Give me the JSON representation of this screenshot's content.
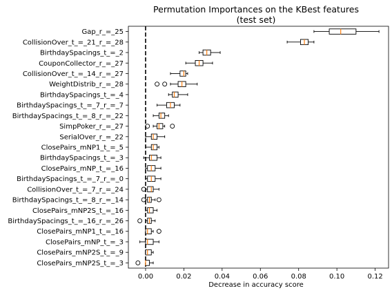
{
  "chart_data": {
    "type": "boxplot",
    "orientation": "horizontal",
    "title": "Permutation Importances on the KBest features",
    "subtitle": "(test set)",
    "xlabel": "Decrease in accuracy score",
    "ylabel": "",
    "xlim": [
      -0.009,
      0.127
    ],
    "xticks": [
      0.0,
      0.02,
      0.04,
      0.06,
      0.08,
      0.1,
      0.12
    ],
    "xtick_labels": [
      "0.00",
      "0.02",
      "0.04",
      "0.06",
      "0.08",
      "0.10",
      "0.12"
    ],
    "reference_line": {
      "x": 0,
      "style": "dashed",
      "color": "#000000"
    },
    "box_color": "#000000",
    "median_color": "#ff7f0e",
    "categories": [
      "Gap_r_=_25",
      "CollisionOver_t_=_21_r_=_28",
      "BirthdaySpacings_t_=_2",
      "CouponCollector_r_=_27",
      "CollisionOver_t_=_14_r_=_27",
      "WeightDistrib_r_=_28",
      "BirthdaySpacings_t_=_4",
      "BirthdaySpacings_t_=_7_r_=_7",
      "BirthdaySpacings_t_=_8_r_=_22",
      "SimpPoker_r_=_27",
      "SerialOver_r_=_22",
      "ClosePairs_mNP1_t_=_5",
      "BirthdaySpacings_t_=_3",
      "ClosePairs_mNP_t_=_16",
      "BirthdaySpacings_t_=_7_r_=_0",
      "CollisionOver_t_=_7_r_=_24",
      "BirthdaySpacings_t_=_8_r_=_14",
      "ClosePairs_mNP2S_t_=_16",
      "BirthdaySpacings_t_=_16_r_=_26",
      "ClosePairs_mNP1_t_=_16",
      "ClosePairs_mNP_t_=_3",
      "ClosePairs_mNP2S_t_=_9",
      "ClosePairs_mNP2S_t_=_3"
    ],
    "boxes": [
      {
        "whislo": 0.088,
        "q1": 0.096,
        "med": 0.102,
        "q3": 0.11,
        "whishi": 0.122,
        "fliers": []
      },
      {
        "whislo": 0.074,
        "q1": 0.081,
        "med": 0.083,
        "q3": 0.085,
        "whishi": 0.088,
        "fliers": []
      },
      {
        "whislo": 0.028,
        "q1": 0.03,
        "med": 0.032,
        "q3": 0.034,
        "whishi": 0.039,
        "fliers": []
      },
      {
        "whislo": 0.021,
        "q1": 0.026,
        "med": 0.028,
        "q3": 0.03,
        "whishi": 0.035,
        "fliers": []
      },
      {
        "whislo": 0.013,
        "q1": 0.018,
        "med": 0.02,
        "q3": 0.021,
        "whishi": 0.022,
        "fliers": []
      },
      {
        "whislo": 0.013,
        "q1": 0.017,
        "med": 0.019,
        "q3": 0.021,
        "whishi": 0.027,
        "fliers": [
          0.006,
          0.01
        ]
      },
      {
        "whislo": 0.012,
        "q1": 0.014,
        "med": 0.015,
        "q3": 0.017,
        "whishi": 0.022,
        "fliers": []
      },
      {
        "whislo": 0.006,
        "q1": 0.011,
        "med": 0.013,
        "q3": 0.015,
        "whishi": 0.018,
        "fliers": []
      },
      {
        "whislo": 0.004,
        "q1": 0.007,
        "med": 0.008,
        "q3": 0.01,
        "whishi": 0.012,
        "fliers": []
      },
      {
        "whislo": 0.004,
        "q1": 0.006,
        "med": 0.007,
        "q3": 0.009,
        "whishi": 0.01,
        "fliers": [
          0.001,
          0.014
        ]
      },
      {
        "whislo": 0.0,
        "q1": 0.003,
        "med": 0.004,
        "q3": 0.006,
        "whishi": 0.01,
        "fliers": []
      },
      {
        "whislo": 0.0,
        "q1": 0.003,
        "med": 0.004,
        "q3": 0.006,
        "whishi": 0.007,
        "fliers": []
      },
      {
        "whislo": -0.001,
        "q1": 0.002,
        "med": 0.003,
        "q3": 0.006,
        "whishi": 0.008,
        "fliers": []
      },
      {
        "whislo": 0.0,
        "q1": 0.001,
        "med": 0.003,
        "q3": 0.005,
        "whishi": 0.008,
        "fliers": []
      },
      {
        "whislo": 0.0,
        "q1": 0.001,
        "med": 0.003,
        "q3": 0.005,
        "whishi": 0.008,
        "fliers": []
      },
      {
        "whislo": 0.0,
        "q1": 0.001,
        "med": 0.003,
        "q3": 0.004,
        "whishi": 0.007,
        "fliers": [
          -0.001
        ]
      },
      {
        "whislo": 0.0,
        "q1": 0.001,
        "med": 0.002,
        "q3": 0.003,
        "whishi": 0.005,
        "fliers": [
          -0.001,
          0.007
        ]
      },
      {
        "whislo": 0.0,
        "q1": 0.001,
        "med": 0.002,
        "q3": 0.004,
        "whishi": 0.006,
        "fliers": []
      },
      {
        "whislo": 0.0,
        "q1": 0.001,
        "med": 0.002,
        "q3": 0.003,
        "whishi": 0.005,
        "fliers": [
          -0.003
        ]
      },
      {
        "whislo": 0.0,
        "q1": 0.0,
        "med": 0.001,
        "q3": 0.003,
        "whishi": 0.004,
        "fliers": [
          0.007
        ]
      },
      {
        "whislo": -0.003,
        "q1": 0.0,
        "med": 0.001,
        "q3": 0.004,
        "whishi": 0.007,
        "fliers": []
      },
      {
        "whislo": 0.0,
        "q1": 0.0,
        "med": 0.001,
        "q3": 0.003,
        "whishi": 0.004,
        "fliers": []
      },
      {
        "whislo": 0.0,
        "q1": 0.0,
        "med": 0.0,
        "q3": 0.002,
        "whishi": 0.004,
        "fliers": [
          -0.004
        ]
      }
    ]
  }
}
